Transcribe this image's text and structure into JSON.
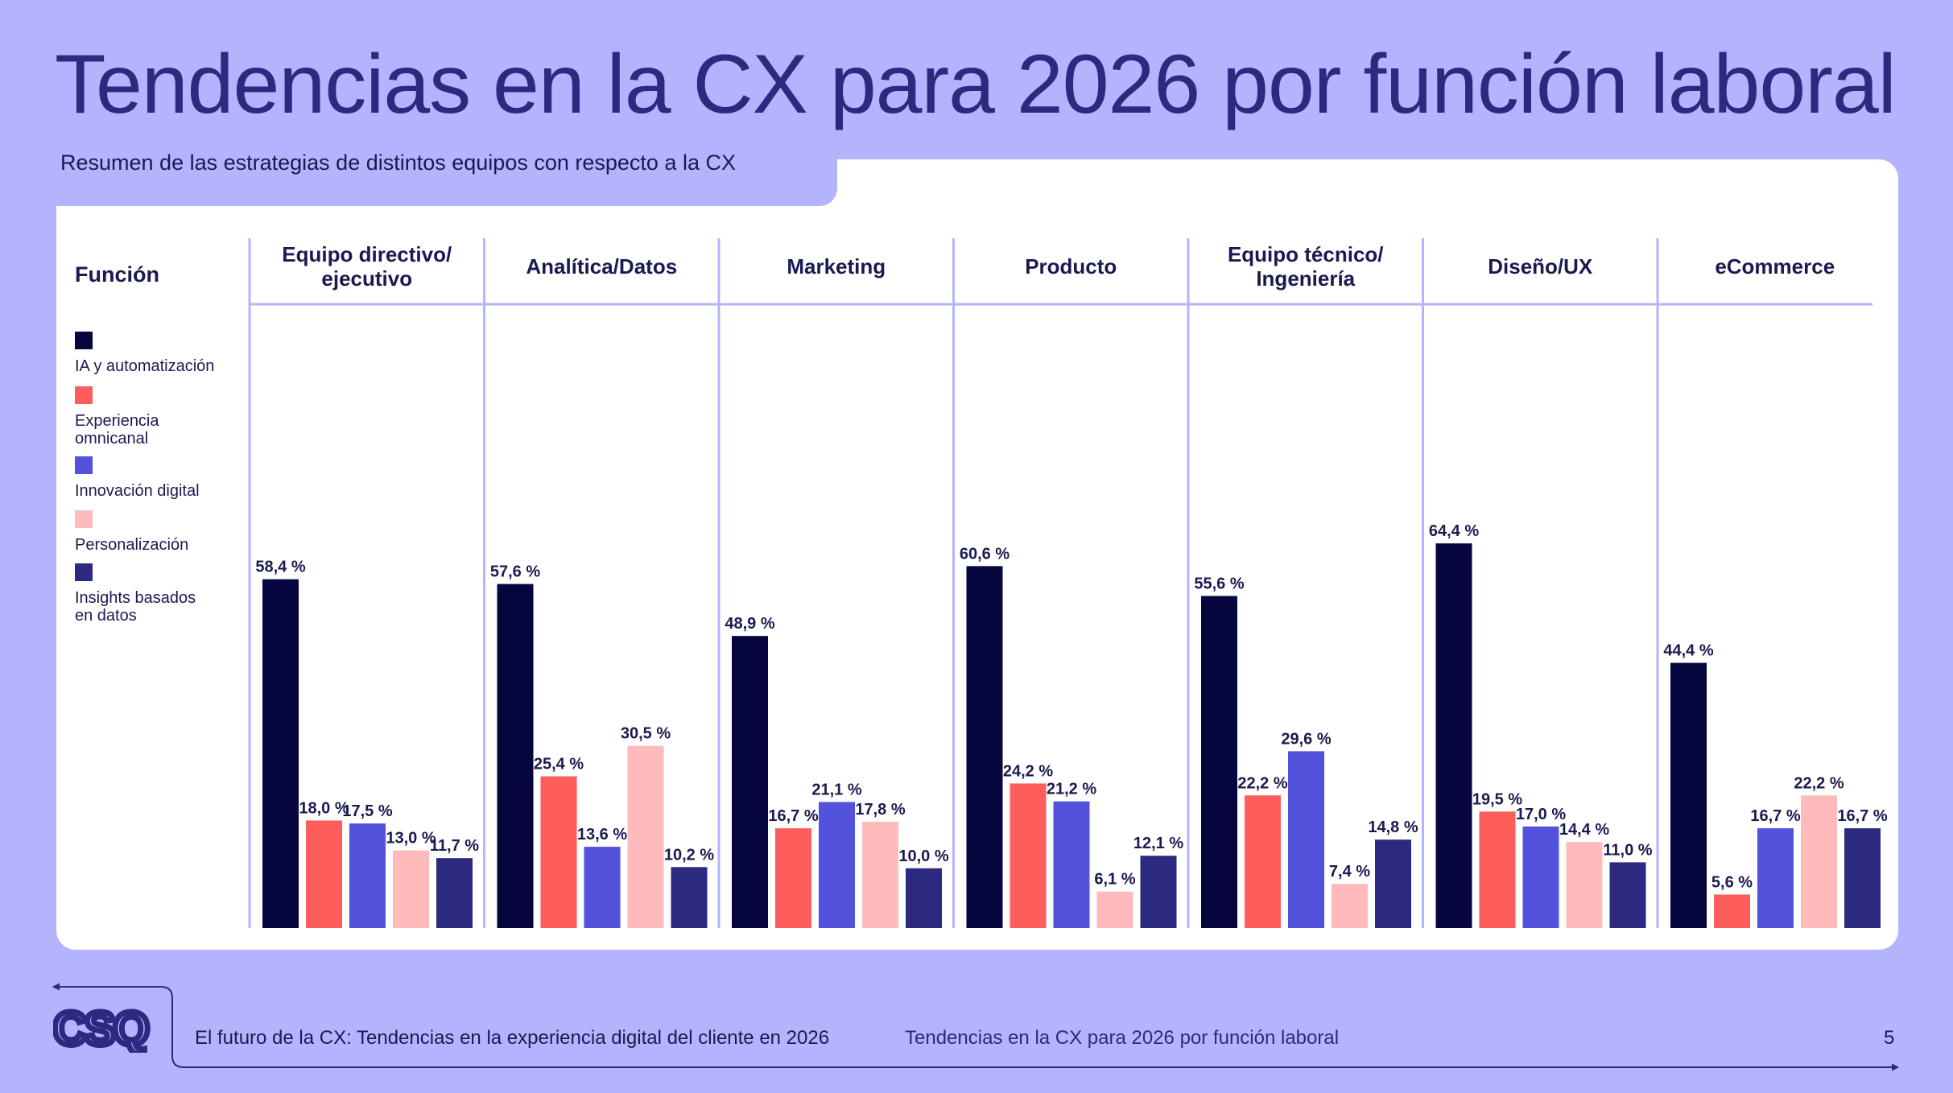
{
  "header": {
    "title": "Tendencias en la CX para 2026 por función laboral",
    "subtitle": "Resumen de las estrategias de distintos equipos con respecto a la CX"
  },
  "table": {
    "row_header": "Función"
  },
  "colors": {
    "background": "#b3b3fe",
    "title": "#2b2a80",
    "divider": "#b3b3fe"
  },
  "chart_data": {
    "type": "bar",
    "categories": [
      "Equipo directivo/ ejecutivo",
      "Analítica/Datos",
      "Marketing",
      "Producto",
      "Equipo técnico/ Ingeniería",
      "Diseño/UX",
      "eCommerce"
    ],
    "category_lines": [
      [
        "Equipo directivo/",
        "ejecutivo"
      ],
      [
        "Analítica/Datos"
      ],
      [
        "Marketing"
      ],
      [
        "Producto"
      ],
      [
        "Equipo técnico/",
        "Ingeniería"
      ],
      [
        "Diseño/UX"
      ],
      [
        "eCommerce"
      ]
    ],
    "series": [
      {
        "name": "IA y automatización",
        "name_lines": [
          "IA y automatización"
        ],
        "color": "#06063f",
        "values": [
          58.4,
          57.6,
          48.9,
          60.6,
          55.6,
          64.4,
          44.4
        ],
        "labels": [
          "58,4 %",
          "57,6 %",
          "48,9 %",
          "60,6 %",
          "55,6 %",
          "64,4 %",
          "44,4 %"
        ]
      },
      {
        "name": "Experiencia omnicanal",
        "name_lines": [
          "Experiencia",
          "omnicanal"
        ],
        "color": "#ff5c5c",
        "values": [
          18.0,
          25.4,
          16.7,
          24.2,
          22.2,
          19.5,
          5.6
        ],
        "labels": [
          "18,0 %",
          "25,4 %",
          "16,7 %",
          "24,2 %",
          "22,2 %",
          "19,5 %",
          "5,6 %"
        ]
      },
      {
        "name": "Innovación digital",
        "name_lines": [
          "Innovación digital"
        ],
        "color": "#5252dc",
        "values": [
          17.5,
          13.6,
          21.1,
          21.2,
          29.6,
          17.0,
          16.7
        ],
        "labels": [
          "17,5 %",
          "13,6 %",
          "21,1 %",
          "21,2 %",
          "29,6 %",
          "17,0 %",
          "16,7 %"
        ]
      },
      {
        "name": "Personalización",
        "name_lines": [
          "Personalización"
        ],
        "color": "#ffbbbb",
        "values": [
          13.0,
          30.5,
          17.8,
          6.1,
          7.4,
          14.4,
          22.2
        ],
        "labels": [
          "13,0 %",
          "30,5 %",
          "17,8 %",
          "6,1 %",
          "7,4 %",
          "14,4 %",
          "22,2 %"
        ]
      },
      {
        "name": "Insights basados en datos",
        "name_lines": [
          "Insights basados",
          "en datos"
        ],
        "color": "#2b2a80",
        "values": [
          11.7,
          10.2,
          10.0,
          12.1,
          14.8,
          11.0,
          16.7
        ],
        "labels": [
          "11,7 %",
          "10,2 %",
          "10,0 %",
          "12,1 %",
          "14,8 %",
          "11,0 %",
          "16,7 %"
        ]
      }
    ],
    "ylim": [
      0,
      100
    ],
    "grid": false,
    "legend": "left"
  },
  "footer": {
    "logo_text": "CSQ",
    "publication": "El futuro de la CX: Tendencias en la experiencia digital del cliente en 2026",
    "section": "Tendencias en la CX para 2026 por función laboral",
    "page": "5"
  }
}
